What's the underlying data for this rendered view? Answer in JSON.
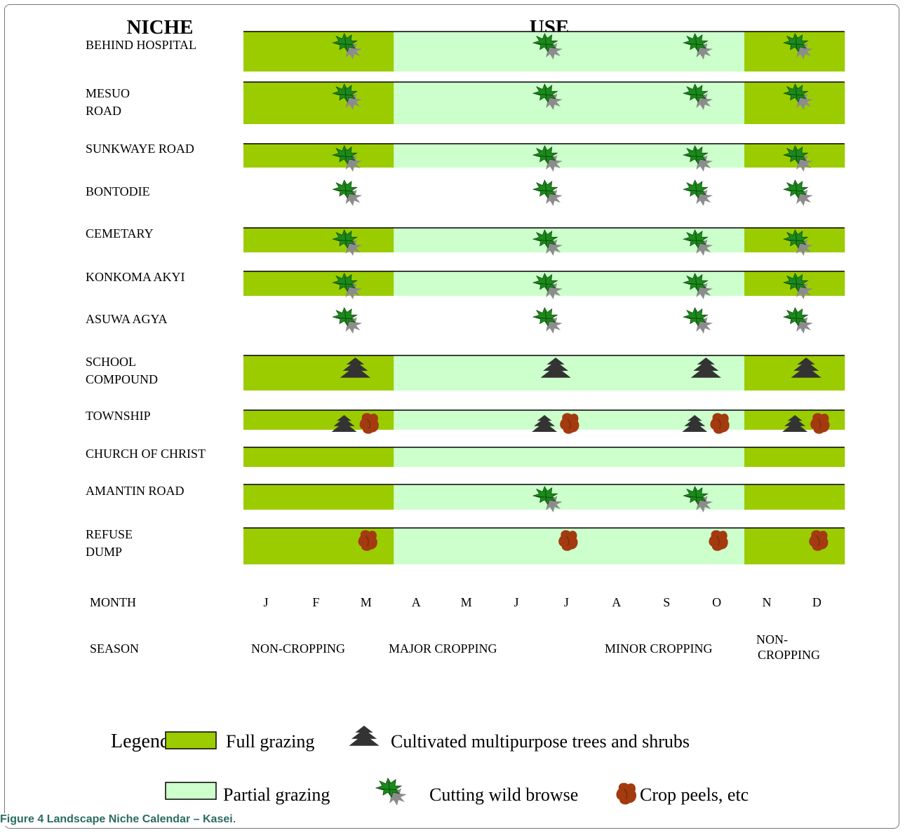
{
  "headers": {
    "niche": "NICHE",
    "use": "USE"
  },
  "rows": [
    {
      "label": [
        "BEHIND HOSPITAL"
      ],
      "bar": true,
      "icons": {
        "2": [
          "browse"
        ],
        "6": [
          "browse"
        ],
        "9": [
          "browse"
        ],
        "11": [
          "browse"
        ]
      }
    },
    {
      "label": [
        "MESUO",
        "ROAD"
      ],
      "bar": true,
      "icons": {
        "2": [
          "browse"
        ],
        "6": [
          "browse"
        ],
        "9": [
          "browse"
        ],
        "11": [
          "browse"
        ]
      }
    },
    {
      "label": [
        "SUNKWAYE ROAD"
      ],
      "bar": true,
      "icons": {
        "2": [
          "browse"
        ],
        "6": [
          "browse"
        ],
        "9": [
          "browse"
        ],
        "11": [
          "browse"
        ]
      }
    },
    {
      "label": [
        "BONTODIE"
      ],
      "bar": false,
      "icons": {
        "2": [
          "browse"
        ],
        "6": [
          "browse"
        ],
        "9": [
          "browse"
        ],
        "11": [
          "browse"
        ]
      }
    },
    {
      "label": [
        "CEMETARY"
      ],
      "bar": true,
      "icons": {
        "2": [
          "browse"
        ],
        "6": [
          "browse"
        ],
        "9": [
          "browse"
        ],
        "11": [
          "browse"
        ]
      }
    },
    {
      "label": [
        "KONKOMA AKYI"
      ],
      "bar": true,
      "icons": {
        "2": [
          "browse"
        ],
        "6": [
          "browse"
        ],
        "9": [
          "browse"
        ],
        "11": [
          "browse"
        ]
      }
    },
    {
      "label": [
        "ASUWA AGYA"
      ],
      "bar": false,
      "icons": {
        "2": [
          "browse"
        ],
        "6": [
          "browse"
        ],
        "9": [
          "browse"
        ],
        "11": [
          "browse"
        ]
      }
    },
    {
      "label": [
        "SCHOOL",
        "COMPOUND"
      ],
      "bar": true,
      "icons": {
        "2": [
          "tree"
        ],
        "6": [
          "tree"
        ],
        "9": [
          "tree"
        ],
        "11": [
          "tree"
        ]
      }
    },
    {
      "label": [
        "TOWNSHIP"
      ],
      "bar": true,
      "icons": {
        "2": [
          "tree",
          "peel"
        ],
        "6": [
          "tree",
          "peel"
        ],
        "9": [
          "tree",
          "peel"
        ],
        "11": [
          "tree",
          "peel"
        ]
      }
    },
    {
      "label": [
        "CHURCH OF CHRIST"
      ],
      "bar": true,
      "icons": {}
    },
    {
      "label": [
        "AMANTIN ROAD"
      ],
      "bar": true,
      "icons": {
        "6": [
          "browse"
        ],
        "9": [
          "browse"
        ]
      }
    },
    {
      "label": [
        "REFUSE",
        "DUMP"
      ],
      "bar": true,
      "icons": {
        "2": [
          "peel"
        ],
        "6": [
          "peel"
        ],
        "9": [
          "peel"
        ],
        "11": [
          "peel"
        ]
      }
    }
  ],
  "months_label": "MONTH",
  "months": [
    "J",
    "F",
    "M",
    "A",
    "M",
    "J",
    "J",
    "A",
    "S",
    "O",
    "N",
    "D"
  ],
  "grazing_pattern": [
    "full",
    "full",
    "full",
    "partial",
    "partial",
    "partial",
    "partial",
    "partial",
    "partial",
    "partial",
    "full",
    "full"
  ],
  "season_label": "SEASON",
  "seasons": [
    {
      "lines": [
        "NON-CROPPING"
      ]
    },
    {
      "lines": [
        "MAJOR CROPPING"
      ]
    },
    {
      "lines": [
        "MINOR CROPPING"
      ]
    },
    {
      "lines": [
        "NON-",
        "CROPPING"
      ]
    }
  ],
  "legend": {
    "title": "Legend:",
    "full": "Full grazing",
    "partial": "Partial grazing",
    "tree": "Cultivated multipurpose trees and shrubs",
    "browse": "Cutting wild browse",
    "peel": "Crop peels, etc"
  },
  "caption": {
    "prefix": "Figure 4",
    "title": "Landscape Niche Calendar – Kasei",
    "end": "."
  },
  "colors": {
    "full": "#9bcc00",
    "partial": "#ccffcc",
    "line": "#000000",
    "browse_green": "#1b8a1b",
    "browse_grey": "#8c8c8c",
    "tree": "#333333",
    "peel": "#a33a10"
  }
}
